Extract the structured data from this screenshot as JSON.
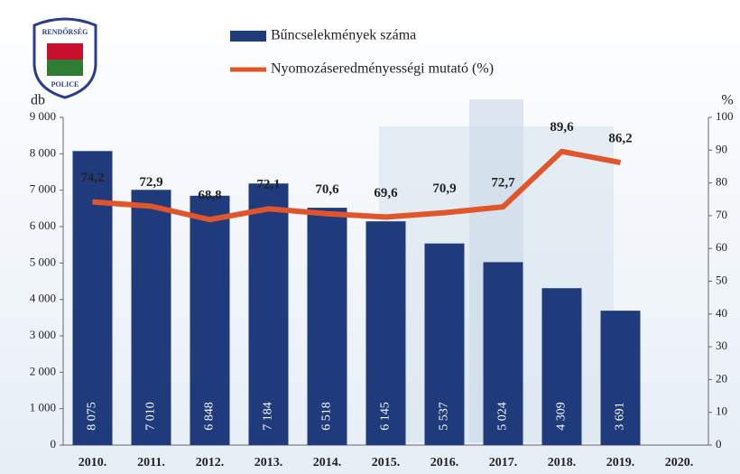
{
  "chart_data": {
    "type": "bar",
    "logo": {
      "top": "RENDŐRSÉG",
      "bottom": "POLICE"
    },
    "ylabel": "db",
    "y2label": "%",
    "categories": [
      "2010.",
      "2011.",
      "2012.",
      "2013.",
      "2014.",
      "2015.",
      "2016.",
      "2017.",
      "2018.",
      "2019.",
      "2020."
    ],
    "series": [
      {
        "name": "Bűncselekmények száma",
        "type": "bar",
        "color": "#1f3b7c",
        "values": [
          8075,
          7010,
          6848,
          7184,
          6518,
          6145,
          5537,
          5024,
          4309,
          3691,
          null
        ],
        "value_labels": [
          "8 075",
          "7 010",
          "6 848",
          "7 184",
          "6 518",
          "6 145",
          "5 537",
          "5 024",
          "4 309",
          "3 691",
          null
        ]
      },
      {
        "name": "Nyomozáseredményességi mutató (%)",
        "type": "line",
        "axis": "y2",
        "color": "#e0552a",
        "values": [
          74.2,
          72.9,
          68.8,
          72.1,
          70.6,
          69.6,
          70.9,
          72.7,
          89.6,
          86.2,
          null
        ],
        "value_labels": [
          "74,2",
          "72,9",
          "68,8",
          "72,1",
          "70,6",
          "69,6",
          "70,9",
          "72,7",
          "89,6",
          "86,2",
          null
        ]
      }
    ],
    "ylim": [
      0,
      9000
    ],
    "yticks": [
      0,
      {
        "value": 1000,
        "label": "1 000"
      },
      {
        "value": 2000,
        "label": "2 000"
      },
      {
        "value": 3000,
        "label": "3 000"
      },
      {
        "value": 4000,
        "label": "4 000"
      },
      {
        "value": 5000,
        "label": "5 000"
      },
      {
        "value": 6000,
        "label": "6 000"
      },
      {
        "value": 7000,
        "label": "7 000"
      },
      {
        "value": 8000,
        "label": "8 000"
      },
      {
        "value": 9000,
        "label": "9 000"
      }
    ],
    "y2lim": [
      0,
      100
    ],
    "y2ticks": [
      0,
      10,
      20,
      30,
      40,
      50,
      60,
      70,
      80,
      90,
      100
    ]
  }
}
